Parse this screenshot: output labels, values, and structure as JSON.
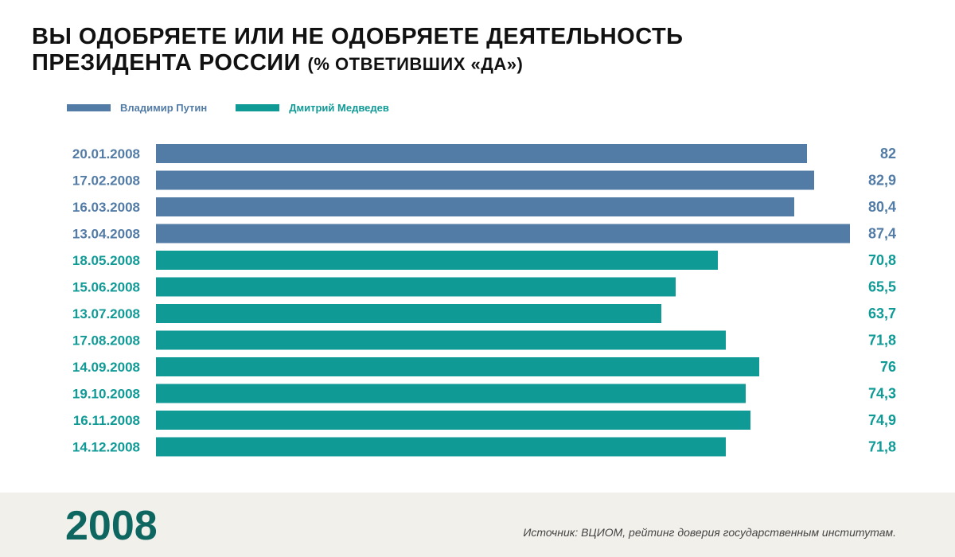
{
  "title_line1": "ВЫ ОДОБРЯЕТЕ ИЛИ НЕ ОДОБРЯЕТЕ ДЕЯТЕЛЬНОСТЬ",
  "title_line2": "ПРЕЗИДЕНТА РОССИИ",
  "title_suffix": "(% ОТВЕТИВШИХ «ДА»)",
  "footer": {
    "year": "2008",
    "source": "Источник: ВЦИОМ, рейтинг доверия государственным институтам."
  },
  "chart_data": {
    "type": "bar",
    "orientation": "horizontal",
    "title": "ВЫ ОДОБРЯЕТЕ ИЛИ НЕ ОДОБРЯЕТЕ ДЕЯТЕЛЬНОСТЬ ПРЕЗИДЕНТА РОССИИ (% ОТВЕТИВШИХ «ДА»)",
    "xlim": [
      0,
      90
    ],
    "legend_position": "top-left",
    "series": [
      {
        "name": "Владимир Путин",
        "color": "#527ba6"
      },
      {
        "name": "Дмитрий Медведев",
        "color": "#0f9a96"
      }
    ],
    "categories": [
      "20.01.2008",
      "17.02.2008",
      "16.03.2008",
      "13.04.2008",
      "18.05.2008",
      "15.06.2008",
      "13.07.2008",
      "17.08.2008",
      "14.09.2008",
      "19.10.2008",
      "16.11.2008",
      "14.12.2008"
    ],
    "values": [
      82,
      82.9,
      80.4,
      87.4,
      70.8,
      65.5,
      63.7,
      71.8,
      76,
      74.3,
      74.9,
      71.8
    ],
    "labels": [
      "82",
      "82,9",
      "80,4",
      "87,4",
      "70,8",
      "65,5",
      "63,7",
      "71,8",
      "76",
      "74,3",
      "74,9",
      "71,8"
    ],
    "series_index": [
      0,
      0,
      0,
      0,
      1,
      1,
      1,
      1,
      1,
      1,
      1,
      1
    ]
  }
}
